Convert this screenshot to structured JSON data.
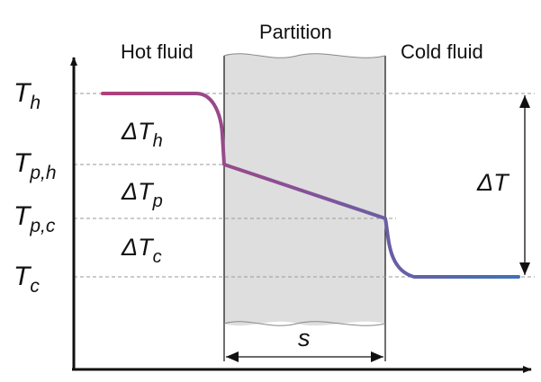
{
  "labels": {
    "hot_fluid": "Hot fluid",
    "partition": "Partition",
    "cold_fluid": "Cold fluid"
  },
  "y_axis_ticks": [
    {
      "sym": "T",
      "sub": "h"
    },
    {
      "sym": "T",
      "sub": "p,h"
    },
    {
      "sym": "T",
      "sub": "p,c"
    },
    {
      "sym": "T",
      "sub": "c"
    }
  ],
  "deltas": [
    {
      "sym": "ΔT",
      "sub": "h"
    },
    {
      "sym": "ΔT",
      "sub": "p"
    },
    {
      "sym": "ΔT",
      "sub": "c"
    }
  ],
  "overall_delta": "ΔT",
  "thickness": "s",
  "colors": {
    "hot": "#b0407a",
    "cold": "#3f72b8",
    "partition_fill": "#dedede"
  }
}
